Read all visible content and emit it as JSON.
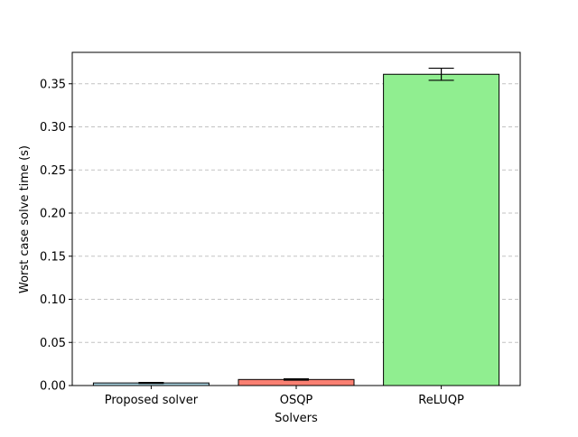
{
  "chart_data": {
    "type": "bar",
    "title": "",
    "xlabel": "Solvers",
    "ylabel": "Worst case solve time (s)",
    "categories": [
      "Proposed solver",
      "OSQP",
      "ReLUQP"
    ],
    "values": [
      0.003,
      0.007,
      0.361
    ],
    "errors": [
      0.0005,
      0.0008,
      0.007
    ],
    "colors": [
      "#add8e6",
      "#fa8072",
      "#90ee90"
    ],
    "ylim": [
      0,
      0.3864
    ],
    "yticks": [
      0.0,
      0.05,
      0.1,
      0.15,
      0.2,
      0.25,
      0.3,
      0.35
    ],
    "ytick_labels": [
      "0.00",
      "0.05",
      "0.10",
      "0.15",
      "0.20",
      "0.25",
      "0.30",
      "0.35"
    ],
    "grid": "y-dashed",
    "legend": "none"
  }
}
